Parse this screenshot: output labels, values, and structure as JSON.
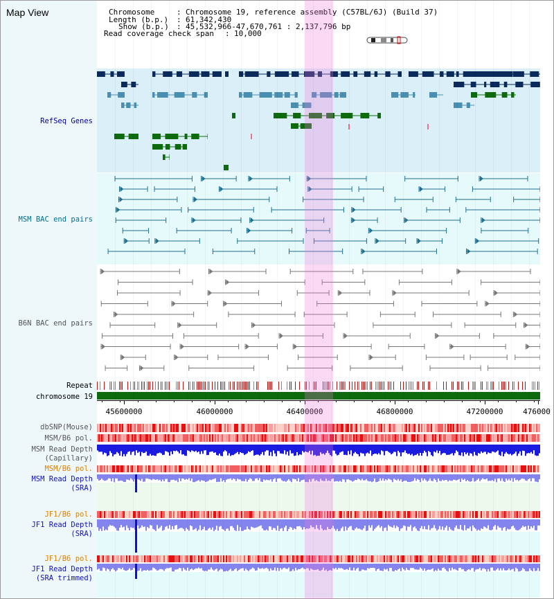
{
  "title": "Map View",
  "info": {
    "chromosome_label": "Chromosome",
    "chromosome_value": "Chromosome 19, reference assembly (C57BL/6J) (Build 37)",
    "length_label": "Length (b.p.)",
    "length_value": "61,342,430",
    "show_label": "Show (b.p.)",
    "show_value": "45,532,966-47,670,761 : 2,137,796 bp",
    "coverage_label": "Read coverage check span",
    "coverage_value": "10,000"
  },
  "tracks": {
    "refseq": "RefSeq Genes",
    "msm_bac": "MSM BAC end pairs",
    "b6n_bac": "B6N BAC end pairs",
    "repeat": "Repeat",
    "chromosome": "chromosome 19",
    "dbsnp": "dbSNP(Mouse)",
    "msm_b6_pol_1": "MSM/B6 pol.",
    "msm_depth_cap_1": "MSM Read Depth",
    "msm_depth_cap_2": "(Capillary)",
    "msm_b6_pol_2": "MSM/B6 pol.",
    "msm_depth_sra_1": "MSM Read Depth",
    "msm_depth_sra_2": "(SRA)",
    "jf1_b6_pol_1": "JF1/B6 pol.",
    "jf1_depth_sra_1": "JF1 Read Depth",
    "jf1_depth_sra_2": "(SRA)",
    "jf1_b6_pol_2": "JF1/B6 pol.",
    "jf1_depth_trim_1": "JF1 Read Depth",
    "jf1_depth_trim_2": "(SRA trimmed)"
  },
  "axis": {
    "ticks": [
      "45600000",
      "46000000",
      "46400000",
      "46800000",
      "47200000",
      "476000"
    ]
  },
  "colors": {
    "refseq_label": "#0000a0",
    "msm_label": "#006f8f",
    "b6n_label": "#555555",
    "jf1_pol_label": "#e08000",
    "depth_label": "#1010c0",
    "highlight": "#f5c8ee",
    "chromosome_bar": "#0d6b0d"
  }
}
